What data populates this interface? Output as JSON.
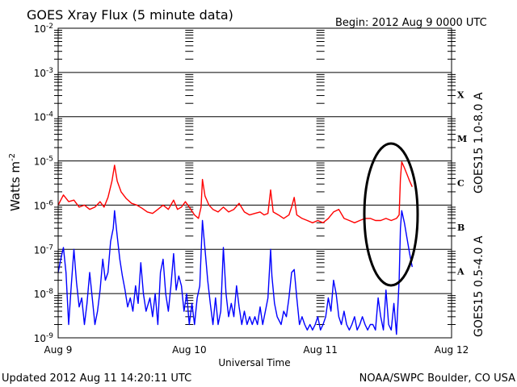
{
  "chart_data": {
    "type": "line",
    "title": "GOES Xray Flux (5 minute data)",
    "begin_text": "Begin:  2012 Aug 9 0000 UTC",
    "xlabel": "Universal Time",
    "ylabel_base": "Watts m",
    "ylabel_exp": "-2",
    "x_unit": "days since 2012 Aug 9 0000 UTC",
    "xlim": [
      0,
      3
    ],
    "x_ticks": [
      {
        "value": 0,
        "label": "Aug 9"
      },
      {
        "value": 1,
        "label": "Aug 10"
      },
      {
        "value": 2,
        "label": "Aug 11"
      },
      {
        "value": 3,
        "label": "Aug 12"
      }
    ],
    "y_scale": "log",
    "ylim": [
      1e-09,
      0.01
    ],
    "y_ticks": [
      {
        "value": 1e-09,
        "base": "10",
        "exp": "-9"
      },
      {
        "value": 1e-08,
        "base": "10",
        "exp": "-8"
      },
      {
        "value": 1e-07,
        "base": "10",
        "exp": "-7"
      },
      {
        "value": 1e-06,
        "base": "10",
        "exp": "-6"
      },
      {
        "value": 1e-05,
        "base": "10",
        "exp": "-5"
      },
      {
        "value": 0.0001,
        "base": "10",
        "exp": "-4"
      },
      {
        "value": 0.001,
        "base": "10",
        "exp": "-3"
      },
      {
        "value": 0.01,
        "base": "10",
        "exp": "-2"
      }
    ],
    "grid": "horizontal at decades",
    "flare_classes": [
      {
        "label": "X",
        "value": 0.000316
      },
      {
        "label": "M",
        "value": 3.16e-05
      },
      {
        "label": "C",
        "value": 3.16e-06
      },
      {
        "label": "B",
        "value": 3.16e-07
      },
      {
        "label": "A",
        "value": 3.16e-08
      }
    ],
    "series": [
      {
        "name": "GOES15 1.0-8.0 A",
        "color": "#ff0000",
        "points": [
          [
            0.0,
            1e-06
          ],
          [
            0.04,
            1.7e-06
          ],
          [
            0.08,
            1.2e-06
          ],
          [
            0.12,
            1.3e-06
          ],
          [
            0.16,
            9e-07
          ],
          [
            0.2,
            1e-06
          ],
          [
            0.24,
            8e-07
          ],
          [
            0.28,
            9e-07
          ],
          [
            0.32,
            1.2e-06
          ],
          [
            0.35,
            9e-07
          ],
          [
            0.38,
            1.5e-06
          ],
          [
            0.41,
            3.5e-06
          ],
          [
            0.43,
            8e-06
          ],
          [
            0.45,
            3.5e-06
          ],
          [
            0.48,
            2e-06
          ],
          [
            0.52,
            1.4e-06
          ],
          [
            0.56,
            1.1e-06
          ],
          [
            0.6,
            1e-06
          ],
          [
            0.64,
            8.5e-07
          ],
          [
            0.68,
            7e-07
          ],
          [
            0.72,
            6.5e-07
          ],
          [
            0.76,
            8e-07
          ],
          [
            0.8,
            1e-06
          ],
          [
            0.84,
            8e-07
          ],
          [
            0.88,
            1.3e-06
          ],
          [
            0.91,
            8e-07
          ],
          [
            0.94,
            9e-07
          ],
          [
            0.97,
            1.2e-06
          ],
          [
            1.0,
            9e-07
          ],
          [
            1.04,
            6e-07
          ],
          [
            1.07,
            5e-07
          ],
          [
            1.09,
            9e-07
          ],
          [
            1.1,
            3.8e-06
          ],
          [
            1.12,
            1.6e-06
          ],
          [
            1.15,
            1e-06
          ],
          [
            1.18,
            8e-07
          ],
          [
            1.22,
            7e-07
          ],
          [
            1.26,
            9e-07
          ],
          [
            1.3,
            7e-07
          ],
          [
            1.34,
            8e-07
          ],
          [
            1.38,
            1.1e-06
          ],
          [
            1.42,
            7e-07
          ],
          [
            1.46,
            6e-07
          ],
          [
            1.5,
            6.5e-07
          ],
          [
            1.54,
            7e-07
          ],
          [
            1.57,
            6e-07
          ],
          [
            1.6,
            6.5e-07
          ],
          [
            1.62,
            2.2e-06
          ],
          [
            1.64,
            7e-07
          ],
          [
            1.68,
            6e-07
          ],
          [
            1.72,
            5e-07
          ],
          [
            1.76,
            6e-07
          ],
          [
            1.78,
            9e-07
          ],
          [
            1.8,
            1.5e-06
          ],
          [
            1.82,
            6e-07
          ],
          [
            1.86,
            5e-07
          ],
          [
            1.9,
            4.5e-07
          ],
          [
            1.94,
            4e-07
          ],
          [
            1.98,
            4.5e-07
          ],
          [
            2.02,
            4e-07
          ],
          [
            2.06,
            5e-07
          ],
          [
            2.1,
            7e-07
          ],
          [
            2.14,
            8e-07
          ],
          [
            2.18,
            5e-07
          ],
          [
            2.22,
            4.5e-07
          ],
          [
            2.26,
            4e-07
          ],
          [
            2.3,
            4.5e-07
          ],
          [
            2.34,
            5e-07
          ],
          [
            2.38,
            5e-07
          ],
          [
            2.42,
            4.5e-07
          ],
          [
            2.46,
            4.5e-07
          ],
          [
            2.5,
            5e-07
          ],
          [
            2.54,
            4.5e-07
          ],
          [
            2.58,
            5e-07
          ],
          [
            2.6,
            6e-07
          ],
          [
            2.61,
            4e-06
          ],
          [
            2.62,
            9.5e-06
          ],
          [
            2.64,
            7e-06
          ],
          [
            2.66,
            5e-06
          ],
          [
            2.68,
            3.5e-06
          ],
          [
            2.7,
            2.6e-06
          ]
        ]
      },
      {
        "name": "GOES15 0.5-4.0 A",
        "color": "#0000ff",
        "points": [
          [
            0.0,
            3e-08
          ],
          [
            0.02,
            6e-08
          ],
          [
            0.04,
            1.1e-07
          ],
          [
            0.06,
            3e-08
          ],
          [
            0.08,
            2e-09
          ],
          [
            0.1,
            1.5e-08
          ],
          [
            0.12,
            1e-07
          ],
          [
            0.14,
            1.8e-08
          ],
          [
            0.16,
            5e-09
          ],
          [
            0.18,
            8e-09
          ],
          [
            0.2,
            2e-09
          ],
          [
            0.22,
            6e-09
          ],
          [
            0.24,
            3e-08
          ],
          [
            0.26,
            8e-09
          ],
          [
            0.28,
            2e-09
          ],
          [
            0.3,
            4e-09
          ],
          [
            0.32,
            1.2e-08
          ],
          [
            0.34,
            6e-08
          ],
          [
            0.36,
            2e-08
          ],
          [
            0.38,
            3e-08
          ],
          [
            0.4,
            1.5e-07
          ],
          [
            0.42,
            3e-07
          ],
          [
            0.43,
            7.5e-07
          ],
          [
            0.45,
            2e-07
          ],
          [
            0.47,
            6e-08
          ],
          [
            0.49,
            2.5e-08
          ],
          [
            0.51,
            1.2e-08
          ],
          [
            0.53,
            5e-09
          ],
          [
            0.55,
            8e-09
          ],
          [
            0.57,
            4e-09
          ],
          [
            0.59,
            1.5e-08
          ],
          [
            0.61,
            6e-09
          ],
          [
            0.63,
            5e-08
          ],
          [
            0.65,
            1e-08
          ],
          [
            0.67,
            4e-09
          ],
          [
            0.7,
            8e-09
          ],
          [
            0.72,
            3e-09
          ],
          [
            0.74,
            1e-08
          ],
          [
            0.76,
            2e-09
          ],
          [
            0.78,
            3e-08
          ],
          [
            0.8,
            6e-08
          ],
          [
            0.82,
            1e-08
          ],
          [
            0.84,
            4e-09
          ],
          [
            0.86,
            1.5e-08
          ],
          [
            0.88,
            8e-08
          ],
          [
            0.9,
            1.2e-08
          ],
          [
            0.92,
            2.5e-08
          ],
          [
            0.94,
            1.5e-08
          ],
          [
            0.96,
            4e-09
          ],
          [
            0.98,
            1e-08
          ],
          [
            1.0,
            2e-09
          ],
          [
            1.02,
            6e-09
          ],
          [
            1.04,
            2e-09
          ],
          [
            1.06,
            8e-09
          ],
          [
            1.08,
            1.5e-08
          ],
          [
            1.1,
            4.5e-07
          ],
          [
            1.12,
            1e-07
          ],
          [
            1.14,
            2e-08
          ],
          [
            1.16,
            6e-09
          ],
          [
            1.18,
            2e-09
          ],
          [
            1.2,
            8e-09
          ],
          [
            1.22,
            2e-09
          ],
          [
            1.24,
            4e-09
          ],
          [
            1.26,
            1.1e-07
          ],
          [
            1.28,
            1e-08
          ],
          [
            1.3,
            3e-09
          ],
          [
            1.32,
            6e-09
          ],
          [
            1.34,
            3e-09
          ],
          [
            1.36,
            1.5e-08
          ],
          [
            1.38,
            5e-09
          ],
          [
            1.4,
            2e-09
          ],
          [
            1.42,
            4e-09
          ],
          [
            1.44,
            2e-09
          ],
          [
            1.46,
            3e-09
          ],
          [
            1.48,
            2e-09
          ],
          [
            1.5,
            3e-09
          ],
          [
            1.52,
            2e-09
          ],
          [
            1.54,
            5e-09
          ],
          [
            1.56,
            2e-09
          ],
          [
            1.58,
            4e-09
          ],
          [
            1.6,
            8e-09
          ],
          [
            1.62,
            1e-07
          ],
          [
            1.63,
            2.5e-08
          ],
          [
            1.65,
            6e-09
          ],
          [
            1.67,
            3e-09
          ],
          [
            1.7,
            2e-09
          ],
          [
            1.72,
            4e-09
          ],
          [
            1.74,
            3e-09
          ],
          [
            1.76,
            8e-09
          ],
          [
            1.78,
            3e-08
          ],
          [
            1.8,
            3.5e-08
          ],
          [
            1.82,
            8e-09
          ],
          [
            1.84,
            2e-09
          ],
          [
            1.86,
            3e-09
          ],
          [
            1.88,
            2e-09
          ],
          [
            1.9,
            1.5e-09
          ],
          [
            1.92,
            2e-09
          ],
          [
            1.94,
            1.5e-09
          ],
          [
            1.96,
            2e-09
          ],
          [
            1.98,
            3e-09
          ],
          [
            2.0,
            1.5e-09
          ],
          [
            2.02,
            2e-09
          ],
          [
            2.04,
            3e-09
          ],
          [
            2.06,
            8e-09
          ],
          [
            2.08,
            4e-09
          ],
          [
            2.1,
            2e-08
          ],
          [
            2.12,
            1e-08
          ],
          [
            2.14,
            3e-09
          ],
          [
            2.16,
            2e-09
          ],
          [
            2.18,
            4e-09
          ],
          [
            2.2,
            2e-09
          ],
          [
            2.22,
            1.5e-09
          ],
          [
            2.24,
            2e-09
          ],
          [
            2.26,
            3e-09
          ],
          [
            2.28,
            1.5e-09
          ],
          [
            2.3,
            2e-09
          ],
          [
            2.32,
            3e-09
          ],
          [
            2.34,
            2e-09
          ],
          [
            2.36,
            1.5e-09
          ],
          [
            2.38,
            2e-09
          ],
          [
            2.4,
            2e-09
          ],
          [
            2.42,
            1.5e-09
          ],
          [
            2.44,
            8e-09
          ],
          [
            2.46,
            3e-09
          ],
          [
            2.48,
            1.5e-09
          ],
          [
            2.5,
            1.2e-08
          ],
          [
            2.52,
            2e-09
          ],
          [
            2.54,
            1.5e-09
          ],
          [
            2.56,
            6e-09
          ],
          [
            2.58,
            1.2e-09
          ],
          [
            2.6,
            2e-08
          ],
          [
            2.61,
            3e-07
          ],
          [
            2.62,
            7.5e-07
          ],
          [
            2.64,
            4e-07
          ],
          [
            2.66,
            1.8e-07
          ],
          [
            2.68,
            8e-08
          ],
          [
            2.7,
            4e-08
          ]
        ]
      }
    ],
    "annotation": "ellipse around flare near end of Aug 11"
  },
  "footer": {
    "updated": "Updated 2012 Aug 11 14:20:11 UTC",
    "credit": "NOAA/SWPC Boulder, CO USA"
  }
}
